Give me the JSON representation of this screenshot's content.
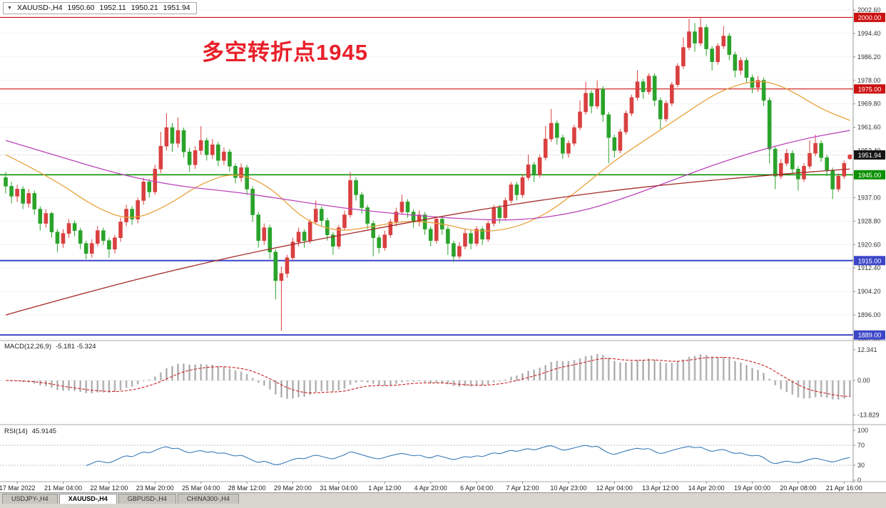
{
  "window": {
    "tabs": [
      {
        "label": "USDJPY-,H4"
      },
      {
        "label": "XAUUSD-,H4"
      },
      {
        "label": "GBPUSD-,H4"
      },
      {
        "label": "CHINA300-,H4"
      }
    ]
  },
  "indicators": {
    "macd": {
      "label": "MACD(12,26,9)",
      "values": "-5.181 -5.324",
      "axis_ticks": [
        {
          "v": 12.341,
          "label": "12.341"
        },
        {
          "v": 0,
          "label": "0.00"
        },
        {
          "v": -13.829,
          "label": "-13.829"
        }
      ]
    },
    "rsi": {
      "label": "RSI(14)",
      "value": "45.9145",
      "levels": [
        70,
        30
      ],
      "axis_ticks": [
        {
          "v": 100,
          "label": "100"
        },
        {
          "v": 70,
          "label": "70"
        },
        {
          "v": 30,
          "label": "30"
        },
        {
          "v": 0,
          "label": "0"
        }
      ]
    }
  },
  "chart_data": {
    "type": "candlestick",
    "symbol_label": "XAUUSD-,H4",
    "dropdown_icon": "▼",
    "annotation": "多空转折点1945",
    "annotation_color": "#e8202a",
    "ohlc": {
      "open": "1950.60",
      "high": "1952.11",
      "low": "1950.21",
      "close": "1951.94"
    },
    "ylim": [
      1887.05,
      2006.1
    ],
    "up_color": "#d94040",
    "down_color": "#2aa32a",
    "price_ticks": [
      {
        "v": 2002.6,
        "label": "2002.60"
      },
      {
        "v": 1994.4,
        "label": "1994.40"
      },
      {
        "v": 1986.2,
        "label": "1986.20"
      },
      {
        "v": 1978.0,
        "label": "1978.00"
      },
      {
        "v": 1969.8,
        "label": "1969.80"
      },
      {
        "v": 1961.6,
        "label": "1961.60"
      },
      {
        "v": 1953.4,
        "label": "1953.40"
      },
      {
        "v": 1937.0,
        "label": "1937.00"
      },
      {
        "v": 1928.8,
        "label": "1928.80"
      },
      {
        "v": 1920.6,
        "label": "1920.60"
      },
      {
        "v": 1912.4,
        "label": "1912.40"
      },
      {
        "v": 1904.2,
        "label": "1904.20"
      },
      {
        "v": 1896.0,
        "label": "1896.00"
      },
      {
        "v": 1887.8,
        "label": "1887.80"
      }
    ],
    "hlines": [
      {
        "v": 2000.0,
        "color": "#cc1111",
        "label": "2000.00",
        "w": 1.2
      },
      {
        "v": 1975.0,
        "color": "#cc1111",
        "label": "1975.00",
        "w": 1.2
      },
      {
        "v": 1945.0,
        "color": "#0a9000",
        "label": "1945.00",
        "w": 1.6
      },
      {
        "v": 1915.0,
        "color": "#3c46c8",
        "label": "1915.00",
        "w": 2
      },
      {
        "v": 1889.0,
        "color": "#3c46c8",
        "label": "1889.00",
        "w": 2
      }
    ],
    "current_price": {
      "v": 1951.94,
      "label": "1951.94",
      "bg": "#141414"
    },
    "time_labels": [
      "17 Mar 2022",
      "21 Mar 04:00",
      "22 Mar 12:00",
      "23 Mar 20:00",
      "25 Mar 04:00",
      "28 Mar 12:00",
      "29 Mar 20:00",
      "31 Mar 04:00",
      "1 Apr 12:00",
      "4 Apr 20:00",
      "6 Apr 04:00",
      "7 Apr 12:00",
      "10 Apr 23:00",
      "12 Apr 04:00",
      "13 Apr 12:00",
      "14 Apr 20:00",
      "19 Apr 00:00",
      "20 Apr 08:00",
      "21 Apr 16:00"
    ],
    "first_label_index": 2,
    "label_every": 8,
    "macd_params": [
      12,
      26,
      9
    ],
    "rsi_period": 14,
    "ma_lines": [
      {
        "name": "ma-fast",
        "color": "#e8a23c",
        "points": [
          [
            0,
            1952
          ],
          [
            8,
            1944
          ],
          [
            16,
            1933
          ],
          [
            22,
            1929
          ],
          [
            28,
            1934
          ],
          [
            34,
            1942
          ],
          [
            40,
            1946
          ],
          [
            46,
            1941
          ],
          [
            52,
            1929
          ],
          [
            58,
            1925
          ],
          [
            64,
            1927
          ],
          [
            70,
            1929
          ],
          [
            76,
            1928
          ],
          [
            82,
            1925
          ],
          [
            88,
            1926
          ],
          [
            94,
            1931
          ],
          [
            100,
            1940
          ],
          [
            106,
            1950
          ],
          [
            112,
            1958
          ],
          [
            118,
            1966
          ],
          [
            124,
            1974
          ],
          [
            130,
            1978
          ],
          [
            134,
            1977
          ],
          [
            138,
            1973
          ],
          [
            142,
            1968
          ],
          [
            147,
            1964
          ]
        ]
      },
      {
        "name": "ma-mid",
        "color": "#bb44bb",
        "points": [
          [
            0,
            1957
          ],
          [
            10,
            1951
          ],
          [
            20,
            1945
          ],
          [
            30,
            1941
          ],
          [
            40,
            1939
          ],
          [
            50,
            1936
          ],
          [
            60,
            1933
          ],
          [
            70,
            1931
          ],
          [
            80,
            1929.5
          ],
          [
            90,
            1929
          ],
          [
            100,
            1932
          ],
          [
            108,
            1937
          ],
          [
            116,
            1943
          ],
          [
            124,
            1949
          ],
          [
            132,
            1954
          ],
          [
            140,
            1958
          ],
          [
            147,
            1960.5
          ]
        ]
      },
      {
        "name": "ma-slow",
        "color": "#a52a2a",
        "points": [
          [
            0,
            1896
          ],
          [
            16,
            1905
          ],
          [
            32,
            1913
          ],
          [
            48,
            1920
          ],
          [
            64,
            1926
          ],
          [
            80,
            1932
          ],
          [
            96,
            1937
          ],
          [
            112,
            1941
          ],
          [
            128,
            1944
          ],
          [
            140,
            1946
          ],
          [
            147,
            1947
          ]
        ]
      }
    ],
    "candles": [
      [
        1944.0,
        1946.0,
        1938.5,
        1941.0
      ],
      [
        1941.0,
        1942.5,
        1935.0,
        1937.5
      ],
      [
        1937.5,
        1941.5,
        1935.5,
        1940.0
      ],
      [
        1940.0,
        1941.0,
        1933.0,
        1935.0
      ],
      [
        1935.0,
        1940.0,
        1933.5,
        1938.5
      ],
      [
        1938.5,
        1939.5,
        1931.0,
        1933.0
      ],
      [
        1933.0,
        1934.0,
        1925.5,
        1928.0
      ],
      [
        1928.0,
        1933.0,
        1926.5,
        1931.5
      ],
      [
        1931.5,
        1932.0,
        1923.0,
        1925.0
      ],
      [
        1925.0,
        1926.0,
        1918.0,
        1921.0
      ],
      [
        1921.0,
        1926.0,
        1919.5,
        1924.5
      ],
      [
        1924.5,
        1929.5,
        1923.0,
        1928.0
      ],
      [
        1928.0,
        1929.0,
        1923.5,
        1925.5
      ],
      [
        1925.5,
        1926.5,
        1919.0,
        1921.0
      ],
      [
        1921.0,
        1922.0,
        1915.5,
        1917.5
      ],
      [
        1917.5,
        1922.5,
        1916.0,
        1921.0
      ],
      [
        1921.0,
        1927.0,
        1920.0,
        1925.5
      ],
      [
        1925.5,
        1926.5,
        1920.5,
        1922.0
      ],
      [
        1922.0,
        1923.0,
        1916.0,
        1919.0
      ],
      [
        1919.0,
        1924.0,
        1917.5,
        1923.0
      ],
      [
        1923.0,
        1930.0,
        1921.5,
        1928.5
      ],
      [
        1928.5,
        1934.5,
        1927.0,
        1933.0
      ],
      [
        1933.0,
        1934.0,
        1927.5,
        1929.5
      ],
      [
        1929.5,
        1937.0,
        1928.0,
        1936.0
      ],
      [
        1936.0,
        1944.0,
        1934.5,
        1942.5
      ],
      [
        1942.5,
        1943.5,
        1937.0,
        1939.0
      ],
      [
        1939.0,
        1948.5,
        1938.0,
        1947.0
      ],
      [
        1947.0,
        1960.0,
        1945.5,
        1955.0
      ],
      [
        1955.0,
        1966.5,
        1953.5,
        1961.5
      ],
      [
        1961.5,
        1963.0,
        1953.0,
        1956.0
      ],
      [
        1956.0,
        1965.0,
        1954.5,
        1960.5
      ],
      [
        1960.5,
        1961.5,
        1951.0,
        1953.0
      ],
      [
        1953.0,
        1954.5,
        1946.0,
        1948.5
      ],
      [
        1948.5,
        1955.0,
        1947.0,
        1953.5
      ],
      [
        1953.5,
        1962.0,
        1952.0,
        1957.0
      ],
      [
        1957.0,
        1958.0,
        1950.0,
        1952.0
      ],
      [
        1952.0,
        1957.5,
        1950.5,
        1955.5
      ],
      [
        1955.5,
        1956.5,
        1948.0,
        1950.0
      ],
      [
        1950.0,
        1954.5,
        1948.5,
        1953.0
      ],
      [
        1953.0,
        1954.0,
        1946.0,
        1948.0
      ],
      [
        1948.0,
        1949.0,
        1942.0,
        1944.0
      ],
      [
        1944.0,
        1949.0,
        1942.5,
        1947.5
      ],
      [
        1947.5,
        1948.5,
        1938.0,
        1940.0
      ],
      [
        1940.0,
        1941.0,
        1928.5,
        1931.0
      ],
      [
        1931.0,
        1932.0,
        1919.5,
        1922.0
      ],
      [
        1922.0,
        1928.0,
        1920.5,
        1926.5
      ],
      [
        1926.5,
        1927.5,
        1915.5,
        1918.0
      ],
      [
        1918.0,
        1919.0,
        1901.5,
        1908.0
      ],
      [
        1908.0,
        1913.0,
        1890.5,
        1910.5
      ],
      [
        1910.5,
        1917.0,
        1909.0,
        1916.0
      ],
      [
        1916.0,
        1923.0,
        1915.0,
        1921.5
      ],
      [
        1921.5,
        1926.5,
        1920.0,
        1925.0
      ],
      [
        1925.0,
        1926.0,
        1919.5,
        1922.0
      ],
      [
        1922.0,
        1929.5,
        1921.0,
        1928.5
      ],
      [
        1928.5,
        1936.0,
        1927.5,
        1933.0
      ],
      [
        1933.0,
        1934.0,
        1927.0,
        1929.0
      ],
      [
        1929.0,
        1930.0,
        1922.0,
        1924.0
      ],
      [
        1924.0,
        1925.0,
        1917.0,
        1920.0
      ],
      [
        1920.0,
        1927.5,
        1919.0,
        1926.5
      ],
      [
        1926.5,
        1932.5,
        1925.5,
        1931.0
      ],
      [
        1931.0,
        1946.0,
        1930.0,
        1943.0
      ],
      [
        1943.0,
        1944.0,
        1936.0,
        1938.0
      ],
      [
        1938.0,
        1939.0,
        1931.5,
        1933.5
      ],
      [
        1933.5,
        1934.5,
        1926.0,
        1928.0
      ],
      [
        1928.0,
        1929.0,
        1916.5,
        1923.0
      ],
      [
        1923.0,
        1924.0,
        1917.5,
        1919.5
      ],
      [
        1919.5,
        1925.5,
        1918.5,
        1924.0
      ],
      [
        1924.0,
        1929.5,
        1923.0,
        1928.5
      ],
      [
        1928.5,
        1933.5,
        1927.0,
        1932.0
      ],
      [
        1932.0,
        1938.0,
        1931.0,
        1935.5
      ],
      [
        1935.5,
        1936.5,
        1930.0,
        1932.0
      ],
      [
        1932.0,
        1933.0,
        1926.5,
        1928.5
      ],
      [
        1928.5,
        1932.5,
        1927.0,
        1931.0
      ],
      [
        1931.0,
        1932.0,
        1924.0,
        1926.0
      ],
      [
        1926.0,
        1927.0,
        1920.0,
        1922.0
      ],
      [
        1922.0,
        1930.5,
        1921.0,
        1929.5
      ],
      [
        1929.5,
        1930.5,
        1924.0,
        1926.0
      ],
      [
        1926.0,
        1927.0,
        1917.0,
        1921.0
      ],
      [
        1921.0,
        1922.0,
        1914.5,
        1916.5
      ],
      [
        1916.5,
        1921.5,
        1915.5,
        1920.0
      ],
      [
        1920.0,
        1926.0,
        1919.0,
        1924.5
      ],
      [
        1924.5,
        1925.5,
        1919.0,
        1921.0
      ],
      [
        1921.0,
        1927.0,
        1920.0,
        1926.0
      ],
      [
        1926.0,
        1927.0,
        1920.5,
        1922.5
      ],
      [
        1922.5,
        1929.0,
        1921.5,
        1928.0
      ],
      [
        1928.0,
        1934.5,
        1927.0,
        1933.5
      ],
      [
        1933.5,
        1934.5,
        1928.0,
        1930.0
      ],
      [
        1930.0,
        1937.0,
        1929.0,
        1936.0
      ],
      [
        1936.0,
        1942.5,
        1935.0,
        1941.5
      ],
      [
        1941.5,
        1942.5,
        1936.0,
        1938.0
      ],
      [
        1938.0,
        1945.0,
        1937.0,
        1944.0
      ],
      [
        1944.0,
        1952.0,
        1943.0,
        1948.5
      ],
      [
        1948.5,
        1949.5,
        1942.5,
        1945.0
      ],
      [
        1945.0,
        1952.0,
        1944.0,
        1951.0
      ],
      [
        1951.0,
        1962.0,
        1950.0,
        1957.5
      ],
      [
        1957.5,
        1968.0,
        1956.5,
        1963.0
      ],
      [
        1963.0,
        1964.0,
        1955.5,
        1958.0
      ],
      [
        1958.0,
        1959.0,
        1950.5,
        1952.5
      ],
      [
        1952.5,
        1957.0,
        1951.0,
        1956.0
      ],
      [
        1956.0,
        1962.5,
        1955.0,
        1961.5
      ],
      [
        1961.5,
        1971.0,
        1960.5,
        1967.0
      ],
      [
        1967.0,
        1977.5,
        1966.0,
        1973.5
      ],
      [
        1973.5,
        1974.5,
        1966.5,
        1969.0
      ],
      [
        1969.0,
        1978.0,
        1968.0,
        1975.0
      ],
      [
        1975.0,
        1976.0,
        1963.5,
        1966.0
      ],
      [
        1966.0,
        1967.0,
        1949.0,
        1958.0
      ],
      [
        1958.0,
        1959.0,
        1951.0,
        1953.5
      ],
      [
        1953.5,
        1961.0,
        1952.5,
        1960.0
      ],
      [
        1960.0,
        1967.5,
        1959.0,
        1966.5
      ],
      [
        1966.5,
        1973.0,
        1965.5,
        1972.0
      ],
      [
        1972.0,
        1981.5,
        1971.0,
        1977.5
      ],
      [
        1977.5,
        1978.5,
        1971.5,
        1974.0
      ],
      [
        1974.0,
        1980.5,
        1973.0,
        1979.5
      ],
      [
        1979.5,
        1980.5,
        1969.0,
        1971.0
      ],
      [
        1971.0,
        1972.0,
        1961.0,
        1964.5
      ],
      [
        1964.5,
        1971.0,
        1963.5,
        1970.0
      ],
      [
        1970.0,
        1977.5,
        1969.0,
        1976.5
      ],
      [
        1976.5,
        1984.0,
        1975.5,
        1983.0
      ],
      [
        1983.0,
        1993.0,
        1982.0,
        1989.5
      ],
      [
        1989.5,
        1999.5,
        1988.5,
        1995.0
      ],
      [
        1995.0,
        1998.0,
        1988.0,
        1991.0
      ],
      [
        1991.0,
        1999.8,
        1990.0,
        1996.5
      ],
      [
        1996.5,
        1997.5,
        1986.5,
        1989.0
      ],
      [
        1989.0,
        1990.0,
        1981.5,
        1984.5
      ],
      [
        1984.5,
        1991.0,
        1983.5,
        1990.0
      ],
      [
        1990.0,
        1997.0,
        1989.0,
        1993.5
      ],
      [
        1993.5,
        1994.5,
        1985.0,
        1987.0
      ],
      [
        1987.0,
        1988.0,
        1979.0,
        1981.5
      ],
      [
        1981.5,
        1986.0,
        1980.0,
        1985.0
      ],
      [
        1985.0,
        1986.0,
        1977.0,
        1979.0
      ],
      [
        1979.0,
        1980.0,
        1973.5,
        1975.5
      ],
      [
        1975.5,
        1979.5,
        1974.0,
        1978.0
      ],
      [
        1978.0,
        1979.0,
        1969.0,
        1971.0
      ],
      [
        1971.0,
        1972.0,
        1949.0,
        1954.0
      ],
      [
        1954.0,
        1955.0,
        1940.0,
        1944.5
      ],
      [
        1944.5,
        1950.5,
        1943.5,
        1949.0
      ],
      [
        1949.0,
        1954.0,
        1948.0,
        1952.5
      ],
      [
        1952.5,
        1953.5,
        1945.5,
        1947.0
      ],
      [
        1947.0,
        1948.0,
        1939.5,
        1943.5
      ],
      [
        1943.5,
        1949.0,
        1942.5,
        1948.0
      ],
      [
        1948.0,
        1957.0,
        1947.0,
        1952.5
      ],
      [
        1952.5,
        1959.0,
        1951.5,
        1956.0
      ],
      [
        1956.0,
        1957.0,
        1949.5,
        1951.0
      ],
      [
        1951.0,
        1952.0,
        1944.5,
        1946.5
      ],
      [
        1946.5,
        1947.5,
        1936.5,
        1940.0
      ],
      [
        1940.0,
        1945.5,
        1939.0,
        1944.5
      ],
      [
        1944.5,
        1950.0,
        1943.5,
        1949.0
      ],
      [
        1950.6,
        1952.11,
        1950.21,
        1951.94
      ]
    ]
  }
}
